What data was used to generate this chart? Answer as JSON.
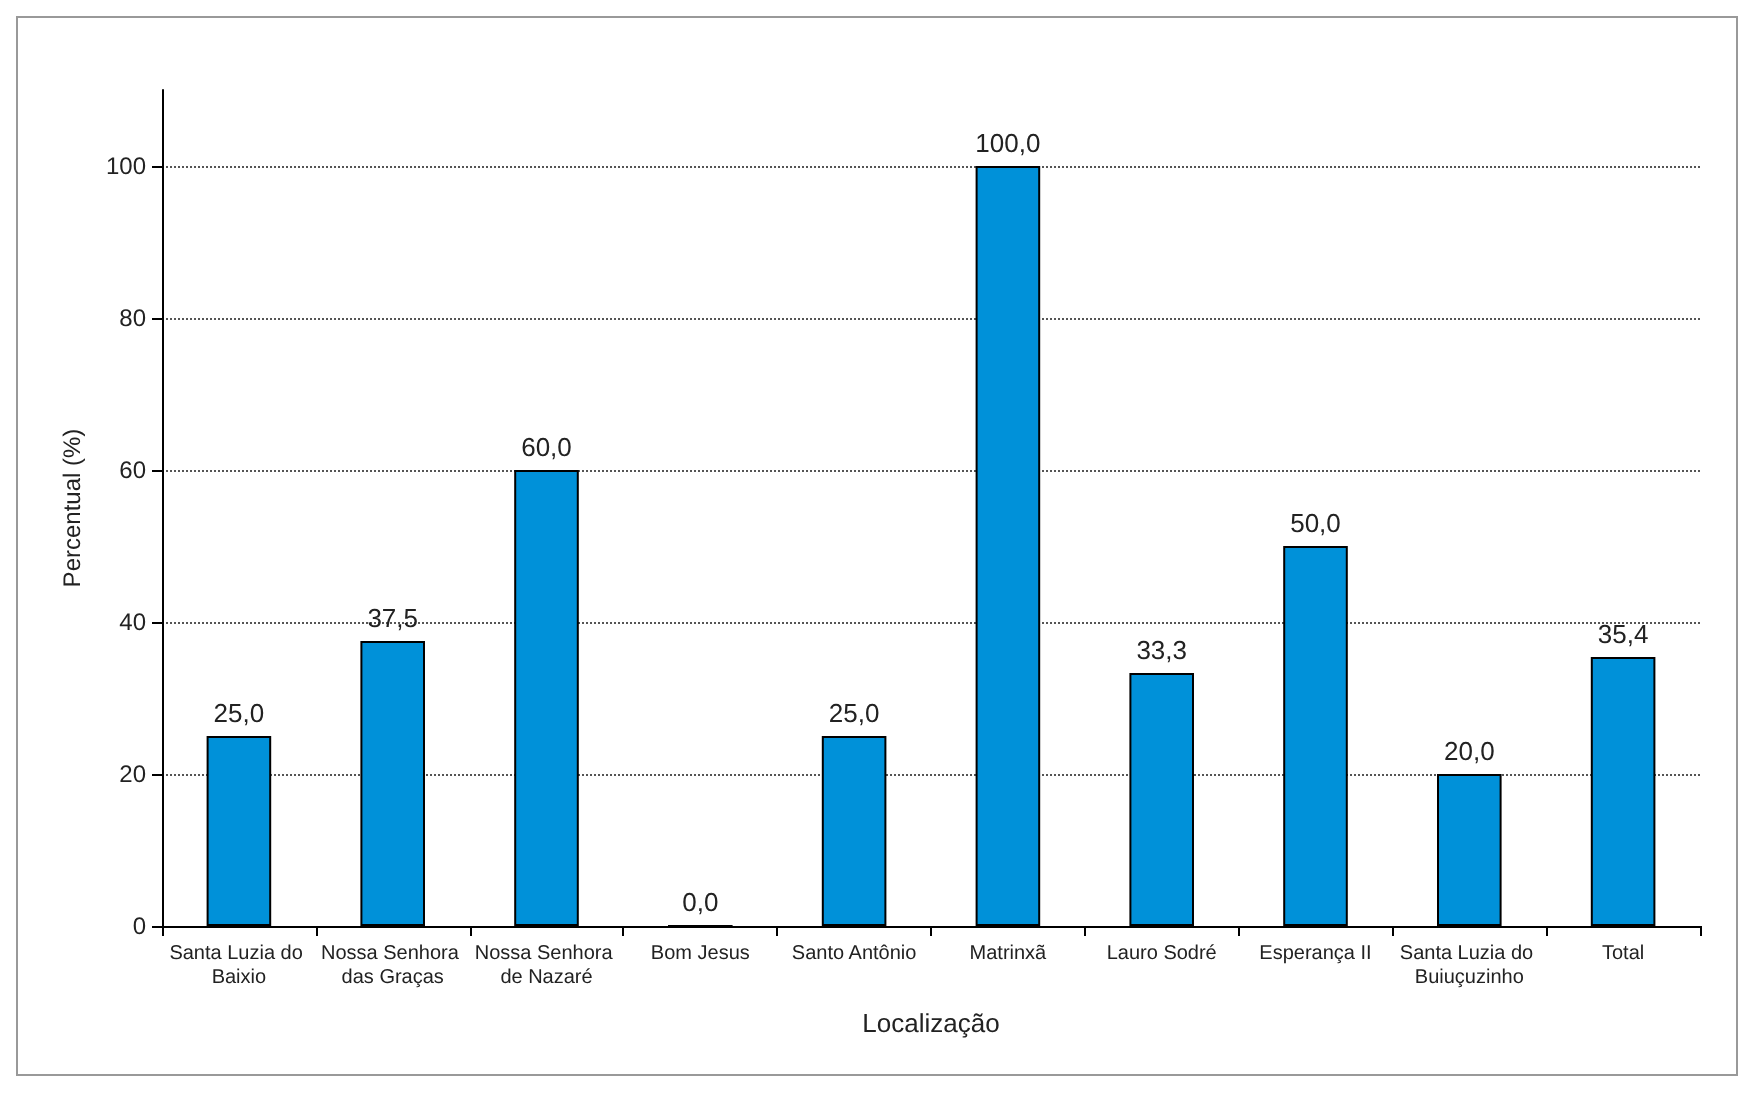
{
  "chart_data": {
    "type": "bar",
    "xlabel": "Localização",
    "ylabel": "Percentual (%)",
    "categories": [
      "Santa Luzia do Baixio",
      "Nossa Senhora das Graças",
      "Nossa Senhora de Nazaré",
      "Bom Jesus",
      "Santo Antônio",
      "Matrinxã",
      "Lauro Sodré",
      "Esperança II",
      "Santa Luzia do Buiuçuzinho",
      "Total"
    ],
    "values": [
      25.0,
      37.5,
      60.0,
      0.0,
      25.0,
      100.0,
      33.3,
      50.0,
      20.0,
      35.4
    ],
    "value_labels": [
      "25,0",
      "37,5",
      "60,0",
      "0,0",
      "25,0",
      "100,0",
      "33,3",
      "50,0",
      "20,0",
      "35,4"
    ],
    "color": "#0091d9",
    "ylim": [
      0,
      110
    ],
    "yticks": [
      0,
      20,
      40,
      60,
      80,
      100
    ],
    "grid": "y"
  }
}
